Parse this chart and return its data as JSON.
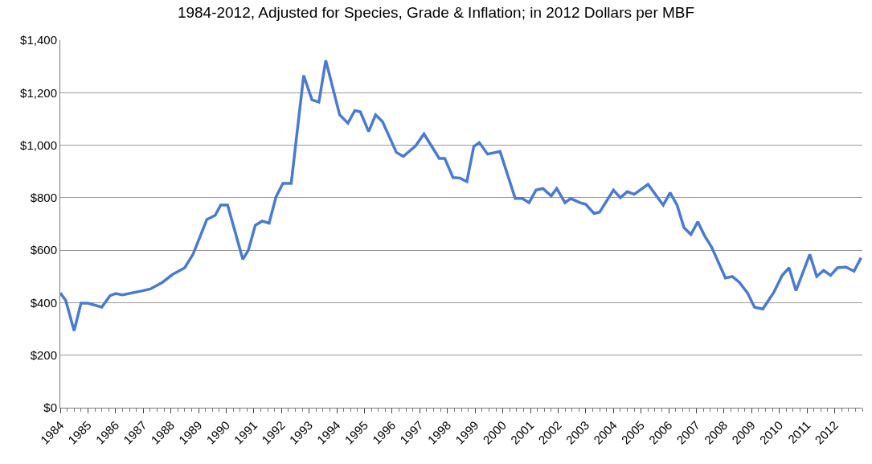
{
  "chart_data": {
    "type": "line",
    "title": "1984-2012, Adjusted for Species, Grade & Inflation; in 2012 Dollars per MBF",
    "x": [
      1984.0,
      1984.2,
      1984.5,
      1984.75,
      1985.0,
      1985.5,
      1985.8,
      1986.0,
      1986.25,
      1987.0,
      1987.25,
      1987.7,
      1988.05,
      1988.5,
      1988.8,
      1989.3,
      1989.6,
      1989.8,
      1990.05,
      1990.6,
      1990.8,
      1991.05,
      1991.3,
      1991.55,
      1991.8,
      1992.05,
      1992.35,
      1992.8,
      1993.1,
      1993.35,
      1993.6,
      1994.1,
      1994.4,
      1994.65,
      1994.85,
      1995.15,
      1995.4,
      1995.65,
      1996.15,
      1996.4,
      1996.85,
      1997.15,
      1997.7,
      1997.9,
      1998.2,
      1998.45,
      1998.7,
      1998.95,
      1999.15,
      1999.45,
      1999.9,
      2000.45,
      2000.7,
      2000.95,
      2001.2,
      2001.45,
      2001.75,
      2001.95,
      2002.25,
      2002.45,
      2002.8,
      2003.0,
      2003.3,
      2003.5,
      2004.0,
      2004.25,
      2004.5,
      2004.75,
      2005.25,
      2005.8,
      2006.05,
      2006.3,
      2006.55,
      2006.8,
      2007.05,
      2007.3,
      2007.55,
      2008.05,
      2008.3,
      2008.55,
      2008.85,
      2009.1,
      2009.4,
      2009.8,
      2010.1,
      2010.35,
      2010.6,
      2011.1,
      2011.35,
      2011.6,
      2011.85,
      2012.1,
      2012.4,
      2012.7,
      2012.95
    ],
    "series": [
      {
        "color": "#4a7bd0",
        "values": [
          437,
          408,
          293,
          398,
          398,
          383,
          427,
          435,
          430,
          446,
          452,
          478,
          507,
          533,
          585,
          717,
          733,
          772,
          772,
          565,
          600,
          695,
          711,
          703,
          803,
          855,
          855,
          1266,
          1173,
          1164,
          1323,
          1116,
          1084,
          1132,
          1127,
          1052,
          1116,
          1090,
          973,
          957,
          998,
          1043,
          950,
          950,
          877,
          875,
          861,
          995,
          1010,
          966,
          976,
          797,
          797,
          781,
          829,
          835,
          807,
          835,
          781,
          797,
          781,
          775,
          740,
          745,
          829,
          800,
          823,
          813,
          851,
          772,
          819,
          772,
          686,
          660,
          708,
          654,
          612,
          494,
          500,
          478,
          437,
          383,
          376,
          440,
          504,
          533,
          446,
          584,
          500,
          523,
          504,
          533,
          536,
          520,
          571
        ]
      }
    ],
    "xlim": [
      1984,
      2013
    ],
    "xticks": [
      1984,
      1985,
      1986,
      1987,
      1988,
      1989,
      1990,
      1991,
      1992,
      1993,
      1994,
      1995,
      1996,
      1997,
      1998,
      1999,
      2000,
      2001,
      2002,
      2003,
      2004,
      2005,
      2006,
      2007,
      2008,
      2009,
      2010,
      2011,
      2012
    ],
    "ylim": [
      0,
      1400
    ],
    "yticks": [
      {
        "value": 0,
        "label": "$0"
      },
      {
        "value": 200,
        "label": "$200"
      },
      {
        "value": 400,
        "label": "$400"
      },
      {
        "value": 600,
        "label": "$600"
      },
      {
        "value": 800,
        "label": "$800"
      },
      {
        "value": 1000,
        "label": "$1,000"
      },
      {
        "value": 1200,
        "label": "$1,200"
      },
      {
        "value": 1400,
        "label": "$1,400"
      }
    ],
    "grid": "y",
    "marker": "none",
    "line_style": "solid"
  }
}
